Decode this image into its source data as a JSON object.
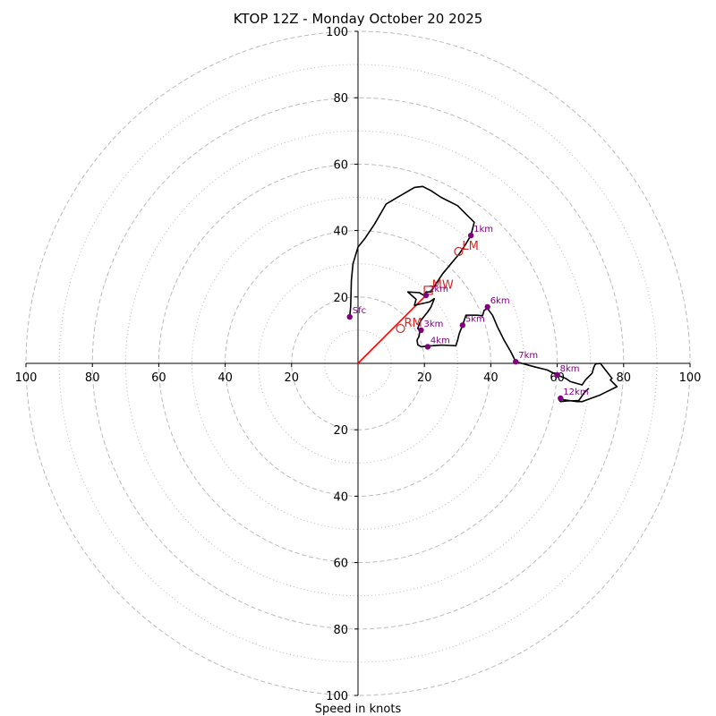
{
  "chart_data": {
    "type": "hodograph",
    "title": "KTOP 12Z - Monday October 20 2025",
    "xlabel": "Speed in knots",
    "range": [
      -100,
      100
    ],
    "rings_major": [
      20,
      40,
      60,
      80,
      100
    ],
    "rings_minor": [
      10,
      30,
      50,
      70,
      90
    ],
    "x_tick_labels": [
      {
        "value": -100,
        "label": "100"
      },
      {
        "value": -80,
        "label": "80"
      },
      {
        "value": -60,
        "label": "60"
      },
      {
        "value": -40,
        "label": "40"
      },
      {
        "value": -20,
        "label": "20"
      },
      {
        "value": 20,
        "label": "20"
      },
      {
        "value": 40,
        "label": "40"
      },
      {
        "value": 60,
        "label": "60"
      },
      {
        "value": 80,
        "label": "80"
      },
      {
        "value": 100,
        "label": "100"
      }
    ],
    "y_tick_labels": [
      {
        "value": 100,
        "label": "100"
      },
      {
        "value": 80,
        "label": "80"
      },
      {
        "value": 60,
        "label": "60"
      },
      {
        "value": 40,
        "label": "40"
      },
      {
        "value": 20,
        "label": "20"
      },
      {
        "value": -20,
        "label": "20"
      },
      {
        "value": -40,
        "label": "40"
      },
      {
        "value": -60,
        "label": "60"
      },
      {
        "value": -80,
        "label": "80"
      },
      {
        "value": -100,
        "label": "100"
      }
    ],
    "trace": [
      [
        -2.5,
        14
      ],
      [
        -2.2,
        17
      ],
      [
        -2,
        25
      ],
      [
        -1.5,
        30
      ],
      [
        0,
        35
      ],
      [
        2,
        37.5
      ],
      [
        5,
        42
      ],
      [
        8.5,
        48
      ],
      [
        11,
        49.5
      ],
      [
        17,
        53
      ],
      [
        19.5,
        53.3
      ],
      [
        22,
        52
      ],
      [
        25,
        50
      ],
      [
        30,
        47.5
      ],
      [
        33,
        44.5
      ],
      [
        35,
        42.5
      ],
      [
        34,
        38.5
      ],
      [
        32.5,
        36
      ],
      [
        30.5,
        33
      ],
      [
        28,
        30
      ],
      [
        25.5,
        27
      ],
      [
        23.5,
        24
      ],
      [
        22,
        21.5
      ],
      [
        20.5,
        21.5
      ],
      [
        19.8,
        20.5
      ],
      [
        18.5,
        21.3
      ],
      [
        15,
        21.5
      ],
      [
        17.5,
        19.3
      ],
      [
        17,
        17.5
      ],
      [
        21.5,
        18.5
      ],
      [
        23,
        19.5
      ],
      [
        22,
        17
      ],
      [
        21,
        15.5
      ],
      [
        19,
        13
      ],
      [
        18.5,
        12
      ],
      [
        18,
        10.5
      ],
      [
        18.6,
        9.8
      ],
      [
        18.4,
        8.2
      ],
      [
        17.8,
        7
      ],
      [
        18,
        5.6
      ],
      [
        19,
        5
      ],
      [
        21,
        5.2
      ],
      [
        25,
        5.5
      ],
      [
        28,
        5.4
      ],
      [
        29.5,
        5.3
      ],
      [
        30,
        7
      ],
      [
        30.5,
        9
      ],
      [
        31.5,
        11.5
      ],
      [
        32.5,
        14.5
      ],
      [
        36,
        14.5
      ],
      [
        37.5,
        14.3
      ],
      [
        38,
        16
      ],
      [
        39,
        16.5
      ],
      [
        40.5,
        14.5
      ],
      [
        42,
        11
      ],
      [
        44,
        7
      ],
      [
        46,
        3.5
      ],
      [
        47.5,
        0.5
      ],
      [
        53,
        -1
      ],
      [
        57,
        -2
      ],
      [
        60,
        -3.5
      ],
      [
        62.5,
        -4.5
      ],
      [
        64,
        -5.5
      ],
      [
        67.5,
        -6.5
      ],
      [
        68.5,
        -5
      ],
      [
        69.5,
        -4
      ],
      [
        70.5,
        -3
      ],
      [
        71,
        -1.2
      ],
      [
        71.5,
        -0.2
      ],
      [
        73,
        0
      ],
      [
        76.5,
        -4.5
      ],
      [
        76,
        -5
      ],
      [
        78,
        -7
      ],
      [
        73,
        -9.5
      ],
      [
        67.5,
        -11.5
      ],
      [
        66,
        -11.5
      ],
      [
        62,
        -11
      ],
      [
        60.7,
        -10.5
      ],
      [
        60.5,
        -11
      ],
      [
        61,
        -11.5
      ],
      [
        63,
        -11.3
      ],
      [
        66.5,
        -11.2
      ],
      [
        68,
        -9
      ],
      [
        69.5,
        -7.5
      ]
    ],
    "height_markers": [
      {
        "label": "Sfc",
        "u": -2.5,
        "v": 14
      },
      {
        "label": "1km",
        "u": 34,
        "v": 38.5
      },
      {
        "label": "2km",
        "u": 20.5,
        "v": 20.5
      },
      {
        "label": "3km",
        "u": 19,
        "v": 10
      },
      {
        "label": "4km",
        "u": 21,
        "v": 5
      },
      {
        "label": "5km",
        "u": 31.5,
        "v": 11.5
      },
      {
        "label": "6km",
        "u": 39,
        "v": 17
      },
      {
        "label": "7km",
        "u": 47.5,
        "v": 0.5
      },
      {
        "label": "8km",
        "u": 60,
        "v": -3.5
      },
      {
        "label": "12km",
        "u": 61,
        "v": -10.5
      }
    ],
    "motion_points": [
      {
        "label": "RM",
        "u": 12.8,
        "v": 10.5,
        "shape": "circle"
      },
      {
        "label": "LM",
        "u": 30.3,
        "v": 33.7,
        "shape": "circle"
      },
      {
        "label": "MW",
        "u": 21.2,
        "v": 22,
        "shape": "square"
      }
    ],
    "shear_vector": {
      "from": [
        0,
        0
      ],
      "to": [
        20.5,
        20.5
      ]
    },
    "colors": {
      "trace": "#000000",
      "marker": "#800080",
      "motion": "#d62728",
      "shear": "#ff0000",
      "grid": "#bbbbbb",
      "axis": "#000000"
    }
  }
}
